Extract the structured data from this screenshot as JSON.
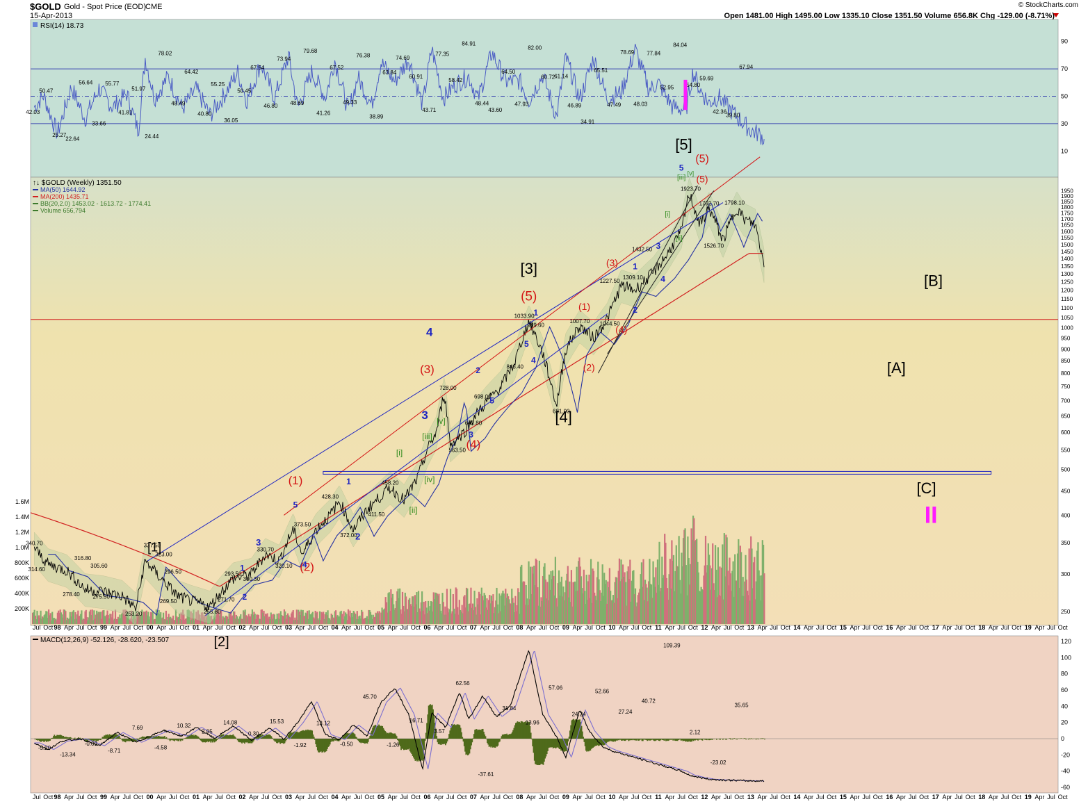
{
  "header": {
    "symbol": "$GOLD",
    "name": "Gold - Spot Price (EOD)",
    "exchange": "CME",
    "date": "15-Apr-2013",
    "copyright": "© StockCharts.com",
    "quote": "Open 1481.00  High 1495.00  Low 1335.10  Close 1351.50  Volume 656.8K  Chg -129.00 (-8.71%)"
  },
  "colors": {
    "rsi_bg": "#c5e0d5",
    "price_bg_top": "#d7e1c8",
    "price_bg_mid": "#efe2ae",
    "price_bg_bottom": "#f3dfb7",
    "macd_bg": "#f0d3c3",
    "price_line": "#000000",
    "ma50": "#2431a3",
    "ma200": "#d11f1f",
    "rsi_line": "#4a5bc4",
    "macd_line": "#000000",
    "signal_line": "#7c6fd0",
    "histogram": "#4f6a1b",
    "wave_red": "#d41515",
    "wave_blue": "#1d24c2",
    "wave_green": "#2f8a1c",
    "wave_magenta": "#ff1aff",
    "vol_up": "#7fb06b",
    "vol_down": "#d0707c"
  },
  "chart_data": [
    {
      "id": "rsi",
      "type": "line",
      "title": "RSI(14) 18.73",
      "ylim": [
        0,
        100
      ],
      "y_ticks": [
        10,
        30,
        50,
        70,
        90
      ],
      "reference_lines": [
        30,
        50,
        70
      ],
      "x": [
        1997.5,
        1997.7,
        1998.0,
        1998.3,
        1998.6,
        1998.9,
        1999.2,
        1999.5,
        1999.75,
        1999.9,
        2000.1,
        2000.4,
        2000.7,
        2001.0,
        2001.3,
        2001.6,
        2001.9,
        2002.1,
        2002.4,
        2002.7,
        2003.0,
        2003.2,
        2003.5,
        2003.8,
        2004.0,
        2004.3,
        2004.5,
        2004.8,
        2005.0,
        2005.3,
        2005.6,
        2005.9,
        2006.1,
        2006.35,
        2006.6,
        2006.9,
        2007.1,
        2007.4,
        2007.7,
        2008.0,
        2008.2,
        2008.5,
        2008.8,
        2009.0,
        2009.3,
        2009.6,
        2009.9,
        2010.2,
        2010.5,
        2010.8,
        2011.0,
        2011.3,
        2011.6,
        2011.75,
        2011.9,
        2012.1,
        2012.3,
        2012.5,
        2012.7,
        2012.85,
        2013.0,
        2013.2,
        2013.29
      ],
      "values": [
        42.03,
        50.47,
        22.64,
        56.64,
        33.66,
        55.77,
        41.81,
        51.97,
        24.44,
        78.02,
        48.49,
        64.42,
        40.8,
        55.25,
        36.05,
        50.45,
        67.54,
        46.8,
        73.94,
        48.69,
        79.68,
        41.26,
        67.52,
        49.33,
        76.38,
        38.89,
        63.84,
        43.71,
        74.69,
        60.91,
        77.35,
        43.6,
        84.91,
        48.44,
        58.42,
        64.5,
        47.93,
        82.0,
        60.72,
        61.14,
        46.89,
        65.51,
        34.91,
        78.69,
        47.49,
        77.84,
        48.03,
        52.95,
        84.04,
        54.8,
        59.69,
        42.36,
        39.8,
        67.94,
        55.0,
        45.0,
        50.0,
        42.0,
        35.0,
        30.0,
        25.0,
        22.0,
        18.73
      ],
      "labels": [
        "42.03",
        "50.47",
        "25.27",
        "22.64",
        "56.64",
        "33.66",
        "55.77",
        "41.81",
        "51.97",
        "24.44",
        "78.02",
        "48.49",
        "64.42",
        "40.80",
        "55.25",
        "36.05",
        "50.45",
        "67.54",
        "46.80",
        "73.94",
        "48.69",
        "79.68",
        "41.26",
        "67.52",
        "49.33",
        "76.38",
        "38.89",
        "63.84",
        "74.69",
        "60.91",
        "43.71",
        "77.35",
        "58.42",
        "84.91",
        "48.44",
        "43.60",
        "64.50",
        "47.93",
        "82.00",
        "60.72",
        "61.14",
        "46.89",
        "34.91",
        "65.51",
        "47.49",
        "78.69",
        "48.03",
        "77.84",
        "52.95",
        "84.04",
        "54.80",
        "59.69",
        "42.36",
        "39.80",
        "67.94"
      ]
    },
    {
      "id": "price",
      "type": "line",
      "title": "$GOLD (Weekly) 1351.50",
      "legend": [
        "MA(50) 1644.92",
        "MA(200) 1435.71",
        "BB(20,2.0) 1453.02 - 1613.72 - 1774.41",
        "Volume 656,794"
      ],
      "scale": "log",
      "ylim": [
        240,
        2000
      ],
      "y_ticks": [
        250,
        300,
        350,
        400,
        450,
        500,
        550,
        600,
        650,
        700,
        750,
        800,
        850,
        900,
        950,
        1000,
        1050,
        1100,
        1150,
        1200,
        1250,
        1300,
        1350,
        1400,
        1450,
        1500,
        1550,
        1600,
        1650,
        1700,
        1750,
        1800,
        1850,
        1900,
        1950
      ],
      "x": [
        1997.5,
        1997.8,
        1998.2,
        1998.6,
        1999.0,
        1999.4,
        1999.7,
        1999.9,
        2000.2,
        2000.6,
        2000.9,
        2001.3,
        2001.5,
        2001.8,
        2002.2,
        2002.5,
        2002.8,
        2003.1,
        2003.3,
        2003.6,
        2003.9,
        2004.1,
        2004.4,
        2004.7,
        2004.9,
        2005.2,
        2005.5,
        2005.8,
        2006.0,
        2006.2,
        2006.37,
        2006.5,
        2006.8,
        2007.0,
        2007.3,
        2007.6,
        2007.9,
        2008.2,
        2008.5,
        2008.8,
        2009.0,
        2009.3,
        2009.6,
        2009.9,
        2010.2,
        2010.5,
        2010.9,
        2011.2,
        2011.5,
        2011.67,
        2011.9,
        2012.1,
        2012.4,
        2012.7,
        2012.85,
        2013.1,
        2013.29
      ],
      "values": [
        340.7,
        314.6,
        305.6,
        278.4,
        275.5,
        269.5,
        253.2,
        320.0,
        296.5,
        269.5,
        263.0,
        255.8,
        271.7,
        293.5,
        300.3,
        330.7,
        320.1,
        373.5,
        330.0,
        373.5,
        400.0,
        428.3,
        372.0,
        411.5,
        430.0,
        458.2,
        430.0,
        480.0,
        550.0,
        600.0,
        728.0,
        563.5,
        600.0,
        642.8,
        698.0,
        750.0,
        846.4,
        1033.9,
        880.0,
        681.0,
        900.0,
        1007.7,
        950.0,
        1044.5,
        1227.5,
        1200.0,
        1309.1,
        1432.5,
        1600.0,
        1923.7,
        1650.0,
        1792.7,
        1526.7,
        1798.1,
        1700.0,
        1650.0,
        1351.5
      ],
      "price_labels": [
        "340.70",
        "314.60",
        "316.80",
        "305.60",
        "278.40",
        "275.50",
        "253.20",
        "337.50",
        "323.00",
        "296.50",
        "269.50",
        "255.80",
        "271.70",
        "293.50",
        "300.30",
        "330.70",
        "320.10",
        "373.50",
        "428.30",
        "372.00",
        "411.50",
        "458.20",
        "728.00",
        "563.50",
        "642.80",
        "698.00",
        "846.40",
        "1033.90",
        "989.60",
        "681.00",
        "1007.70",
        "1044.50",
        "1227.50",
        "1309.10",
        "1432.50",
        "1923.70",
        "1792.70",
        "1526.70",
        "1798.10"
      ],
      "wave_labels": {
        "black": [
          "[1]",
          "[2]",
          "[3]",
          "[4]",
          "[5]",
          "[A]",
          "[B]",
          "[C]"
        ],
        "red": [
          "(1)",
          "(2)",
          "(3)",
          "(4)",
          "(5)",
          "(1)",
          "(2)",
          "(3)",
          "(4)",
          "(5)",
          "(5)"
        ],
        "blue": [
          "1",
          "2",
          "3",
          "4",
          "5",
          "1",
          "2",
          "3",
          "4",
          "5",
          "1",
          "2",
          "3",
          "4",
          "5"
        ],
        "green": [
          "[i]",
          "[ii]",
          "[iii]",
          "[iv]",
          "[v]",
          "[i]",
          "[ii]",
          "[iii]",
          "[v]"
        ],
        "magenta": "II"
      }
    },
    {
      "id": "volume",
      "type": "bar",
      "y_ticks": [
        "200K",
        "400K",
        "600K",
        "800K",
        "1.0M",
        "1.2M",
        "1.4M",
        "1.6M"
      ],
      "ylim": [
        0,
        1800000
      ]
    },
    {
      "id": "macd",
      "type": "line",
      "title": "MACD(12,26,9) -52.126, -28.620, -23.507",
      "ylim": [
        -60,
        120
      ],
      "y_ticks": [
        -60,
        -40,
        -20,
        0,
        20,
        40,
        60,
        80,
        100,
        120
      ],
      "x": [
        1997.5,
        1997.8,
        1998.1,
        1998.5,
        1998.9,
        1999.3,
        1999.7,
        2000.0,
        2000.3,
        2000.7,
        2001.0,
        2001.4,
        2001.8,
        2002.2,
        2002.6,
        2002.9,
        2003.2,
        2003.5,
        2003.8,
        2004.1,
        2004.4,
        2004.7,
        2005.0,
        2005.3,
        2005.6,
        2005.9,
        2006.1,
        2006.4,
        2006.7,
        2006.9,
        2007.2,
        2007.5,
        2007.8,
        2008.2,
        2008.5,
        2008.8,
        2009.0,
        2009.3,
        2009.5,
        2009.8,
        2010.0,
        2010.3,
        2010.6,
        2010.9,
        2011.2,
        2011.5,
        2011.67,
        2011.9,
        2012.1,
        2012.4,
        2012.7,
        2012.9,
        2013.1,
        2013.29
      ],
      "values": [
        -5.2,
        -13.34,
        -3.0,
        -0.09,
        -8.71,
        7.69,
        -4.58,
        3.0,
        10.32,
        2.95,
        14.08,
        0.3,
        15.53,
        -1.92,
        13.12,
        -0.5,
        20.0,
        45.7,
        5.0,
        -1.26,
        16.71,
        3.57,
        45.0,
        62.56,
        30.0,
        -37.61,
        31.84,
        13.96,
        57.06,
        24.24,
        52.66,
        27.24,
        40.72,
        109.39,
        30.0,
        2.12,
        -23.02,
        35.65,
        10.0,
        -10.0,
        -15.0,
        -20.0,
        -25.0,
        -30.0,
        -35.0,
        -40.0,
        -45.0,
        -48.0,
        -50.0,
        -51.0,
        -51.5,
        -52.0,
        -52.1,
        -52.126
      ],
      "labels": [
        "-5.20",
        "-13.34",
        "-0.09",
        "-8.71",
        "7.69",
        "-4.58",
        "10.32",
        "2.95",
        "14.08",
        "0.30",
        "15.53",
        "-1.92",
        "13.12",
        "-0.50",
        "45.70",
        "-1.26",
        "16.71",
        "3.57",
        "62.56",
        "-37.61",
        "31.84",
        "13.96",
        "57.06",
        "24.24",
        "52.66",
        "27.24",
        "40.72",
        "109.39",
        "2.12",
        "-23.02",
        "35.65"
      ]
    }
  ],
  "x_axis": {
    "year_labels": [
      "98",
      "99",
      "00",
      "01",
      "02",
      "03",
      "04",
      "05",
      "06",
      "07",
      "08",
      "09",
      "10",
      "11",
      "12",
      "13",
      "14",
      "15",
      "16",
      "17",
      "18",
      "19"
    ],
    "month_labels": [
      "Apr",
      "Jul",
      "Oct"
    ],
    "start_labels": [
      "Jul",
      "Oct"
    ]
  }
}
